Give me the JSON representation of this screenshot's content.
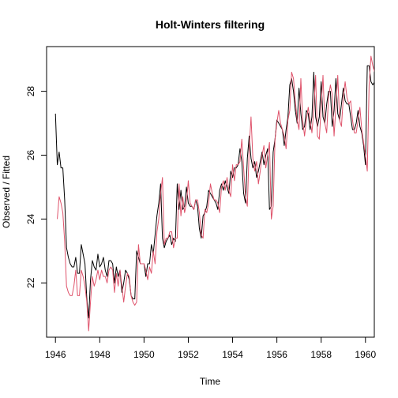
{
  "chart_data": {
    "type": "line",
    "title": "Holt-Winters filtering",
    "xlabel": "Time",
    "ylabel": "Observed / Fitted",
    "xlim": [
      1945.6,
      1960.4
    ],
    "ylim": [
      20.3,
      29.4
    ],
    "x_ticks": [
      1946,
      1948,
      1950,
      1952,
      1954,
      1956,
      1958,
      1960
    ],
    "y_ticks": [
      22,
      24,
      26,
      28
    ],
    "grid": false,
    "legend": "none",
    "colors": {
      "observed": "#000000",
      "fitted": "#DF536B",
      "axis": "#000000"
    },
    "series": [
      {
        "role": "observed",
        "x_start": 1946.0,
        "x_step": 0.08333,
        "values": [
          27.3,
          25.7,
          26.1,
          25.6,
          25.6,
          24.6,
          23.1,
          22.8,
          22.6,
          22.5,
          22.5,
          22.8,
          22.3,
          22.3,
          23.2,
          22.9,
          22.6,
          21.5,
          20.9,
          22.1,
          22.7,
          22.5,
          22.4,
          22.9,
          22.5,
          22.6,
          22.8,
          22.4,
          22.2,
          22.7,
          22.7,
          22.6,
          22.0,
          22.5,
          22.2,
          22.4,
          21.7,
          22.0,
          22.4,
          22.3,
          22.1,
          21.6,
          21.5,
          21.5,
          23.0,
          22.8,
          22.6,
          22.6,
          22.6,
          22.2,
          22.6,
          22.6,
          23.2,
          22.9,
          23.5,
          24.1,
          24.5,
          25.1,
          23.4,
          23.1,
          23.3,
          23.4,
          23.5,
          23.2,
          23.4,
          23.3,
          25.1,
          24.3,
          24.9,
          24.3,
          24.4,
          25.0,
          24.5,
          24.4,
          24.4,
          24.3,
          24.6,
          24.4,
          23.7,
          23.4,
          24.1,
          24.2,
          24.4,
          24.9,
          24.8,
          24.7,
          24.6,
          24.5,
          24.3,
          24.9,
          25.1,
          24.9,
          25.2,
          25.0,
          24.8,
          25.5,
          25.3,
          25.6,
          25.6,
          25.7,
          26.2,
          25.8,
          24.8,
          24.5,
          25.9,
          26.6,
          25.9,
          25.6,
          25.8,
          25.3,
          25.5,
          25.8,
          26.1,
          25.7,
          26.0,
          26.2,
          24.3,
          24.4,
          26.1,
          26.5,
          27.1,
          27.0,
          26.9,
          26.8,
          26.3,
          26.8,
          27.2,
          28.2,
          28.4,
          28.0,
          27.4,
          27.0,
          28.1,
          27.3,
          26.8,
          26.9,
          27.4,
          27.3,
          26.8,
          27.2,
          28.6,
          27.2,
          26.9,
          27.2,
          28.3,
          27.2,
          27.0,
          27.6,
          28.0,
          28.0,
          26.9,
          27.4,
          28.4,
          27.3,
          27.1,
          27.6,
          28.1,
          27.7,
          27.6,
          27.6,
          27.2,
          26.8,
          26.8,
          27.0,
          27.4,
          26.9,
          26.7,
          26.3,
          25.7,
          28.8,
          28.8,
          28.3,
          28.2,
          28.3
        ]
      },
      {
        "role": "fitted",
        "x_start": 1946.083,
        "x_step": 0.08333,
        "values": [
          24.0,
          24.7,
          24.5,
          24.2,
          23.3,
          21.9,
          21.7,
          21.6,
          21.6,
          21.9,
          22.4,
          21.6,
          21.6,
          22.4,
          22.2,
          21.9,
          21.4,
          20.5,
          21.4,
          22.2,
          21.9,
          22.1,
          22.4,
          22.1,
          22.4,
          22.2,
          22.2,
          22.0,
          22.4,
          22.5,
          22.4,
          21.7,
          22.3,
          21.9,
          22.4,
          21.9,
          21.4,
          21.9,
          22.3,
          22.2,
          21.6,
          21.4,
          21.3,
          21.4,
          23.2,
          22.6,
          22.6,
          22.6,
          22.4,
          22.1,
          22.5,
          22.3,
          23.0,
          22.6,
          23.6,
          24.0,
          24.8,
          25.3,
          23.2,
          23.4,
          23.4,
          23.6,
          23.6,
          23.1,
          23.4,
          23.4,
          25.1,
          24.1,
          24.7,
          24.2,
          24.5,
          25.2,
          24.5,
          24.4,
          24.3,
          24.6,
          24.6,
          24.2,
          23.5,
          23.4,
          24.3,
          24.2,
          24.5,
          25.1,
          24.8,
          24.6,
          24.6,
          24.5,
          24.2,
          25.0,
          25.2,
          24.9,
          25.3,
          24.9,
          24.7,
          25.7,
          25.2,
          25.7,
          25.7,
          25.8,
          26.5,
          25.6,
          24.7,
          24.4,
          26.2,
          27.2,
          25.9,
          25.5,
          25.8,
          25.1,
          25.5,
          26.0,
          26.3,
          25.6,
          26.0,
          26.4,
          24.0,
          24.4,
          26.5,
          27.0,
          27.4,
          27.0,
          26.8,
          26.6,
          26.2,
          27.1,
          27.4,
          28.6,
          28.4,
          27.7,
          27.1,
          26.8,
          28.4,
          27.1,
          26.6,
          27.1,
          27.5,
          27.1,
          26.7,
          27.4,
          28.5,
          26.6,
          26.5,
          27.5,
          28.5,
          27.0,
          26.7,
          27.8,
          28.2,
          27.9,
          26.6,
          27.5,
          28.5,
          27.1,
          26.9,
          27.8,
          28.3,
          27.8,
          27.6,
          27.7,
          27.1,
          26.7,
          26.7,
          27.1,
          27.5,
          26.8,
          26.4,
          26.0,
          25.5,
          28.2,
          29.1,
          28.8,
          28.6,
          28.1
        ]
      }
    ]
  }
}
